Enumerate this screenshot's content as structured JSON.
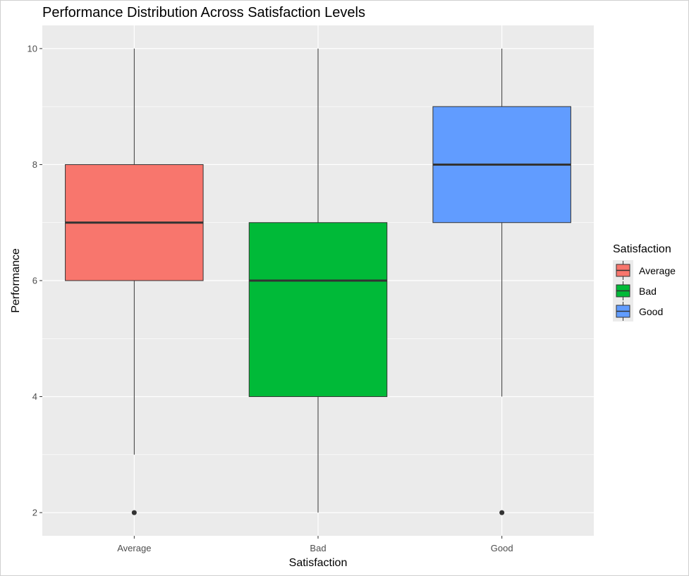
{
  "chart_data": {
    "type": "boxplot",
    "title": "Performance Distribution Across Satisfaction Levels",
    "xlabel": "Satisfaction",
    "ylabel": "Performance",
    "categories": [
      "Average",
      "Bad",
      "Good"
    ],
    "ylim": [
      1.6,
      10.4
    ],
    "yticks": [
      2,
      4,
      6,
      8,
      10
    ],
    "grid": true,
    "boxes": [
      {
        "category": "Average",
        "min": 3,
        "q1": 6,
        "median": 7,
        "q3": 8,
        "max": 10,
        "outliers": [
          2
        ]
      },
      {
        "category": "Bad",
        "min": 2,
        "q1": 4,
        "median": 6,
        "q3": 7,
        "max": 10,
        "outliers": []
      },
      {
        "category": "Good",
        "min": 4,
        "q1": 7,
        "median": 8,
        "q3": 9,
        "max": 10,
        "outliers": [
          2
        ]
      }
    ],
    "legend": {
      "title": "Satisfaction",
      "position": "right",
      "entries": [
        "Average",
        "Bad",
        "Good"
      ]
    },
    "colors": {
      "Average": "#F8766D",
      "Bad": "#00BA38",
      "Good": "#619CFF",
      "panel": "#EBEBEB",
      "grid": "#FFFFFF",
      "outline": "#333333"
    }
  }
}
